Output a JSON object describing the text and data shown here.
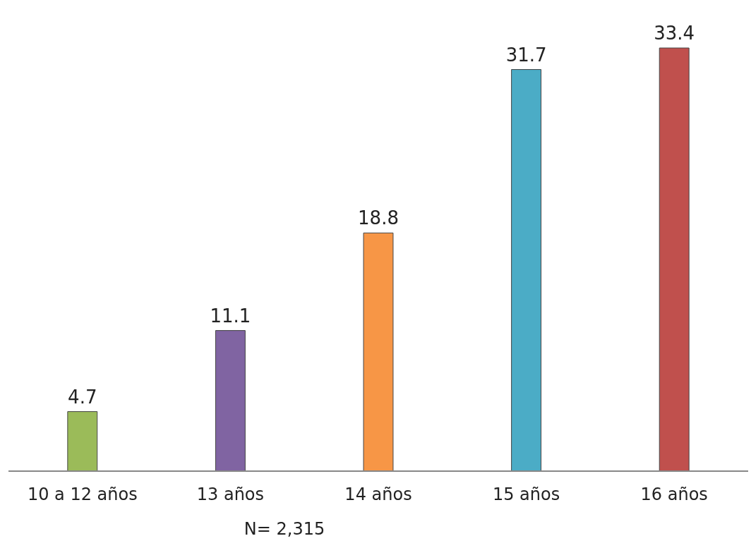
{
  "chart_data": {
    "type": "bar",
    "categories": [
      "10 a 12 años",
      "13 años",
      "14 años",
      "15 años",
      "16 años"
    ],
    "values": [
      4.7,
      11.1,
      18.8,
      31.7,
      33.4
    ],
    "colors": [
      "#9bbb59",
      "#8064a2",
      "#f79646",
      "#4bacc6",
      "#c0504d"
    ],
    "data_labels": true,
    "annotations": [
      "N= 2,315"
    ]
  }
}
